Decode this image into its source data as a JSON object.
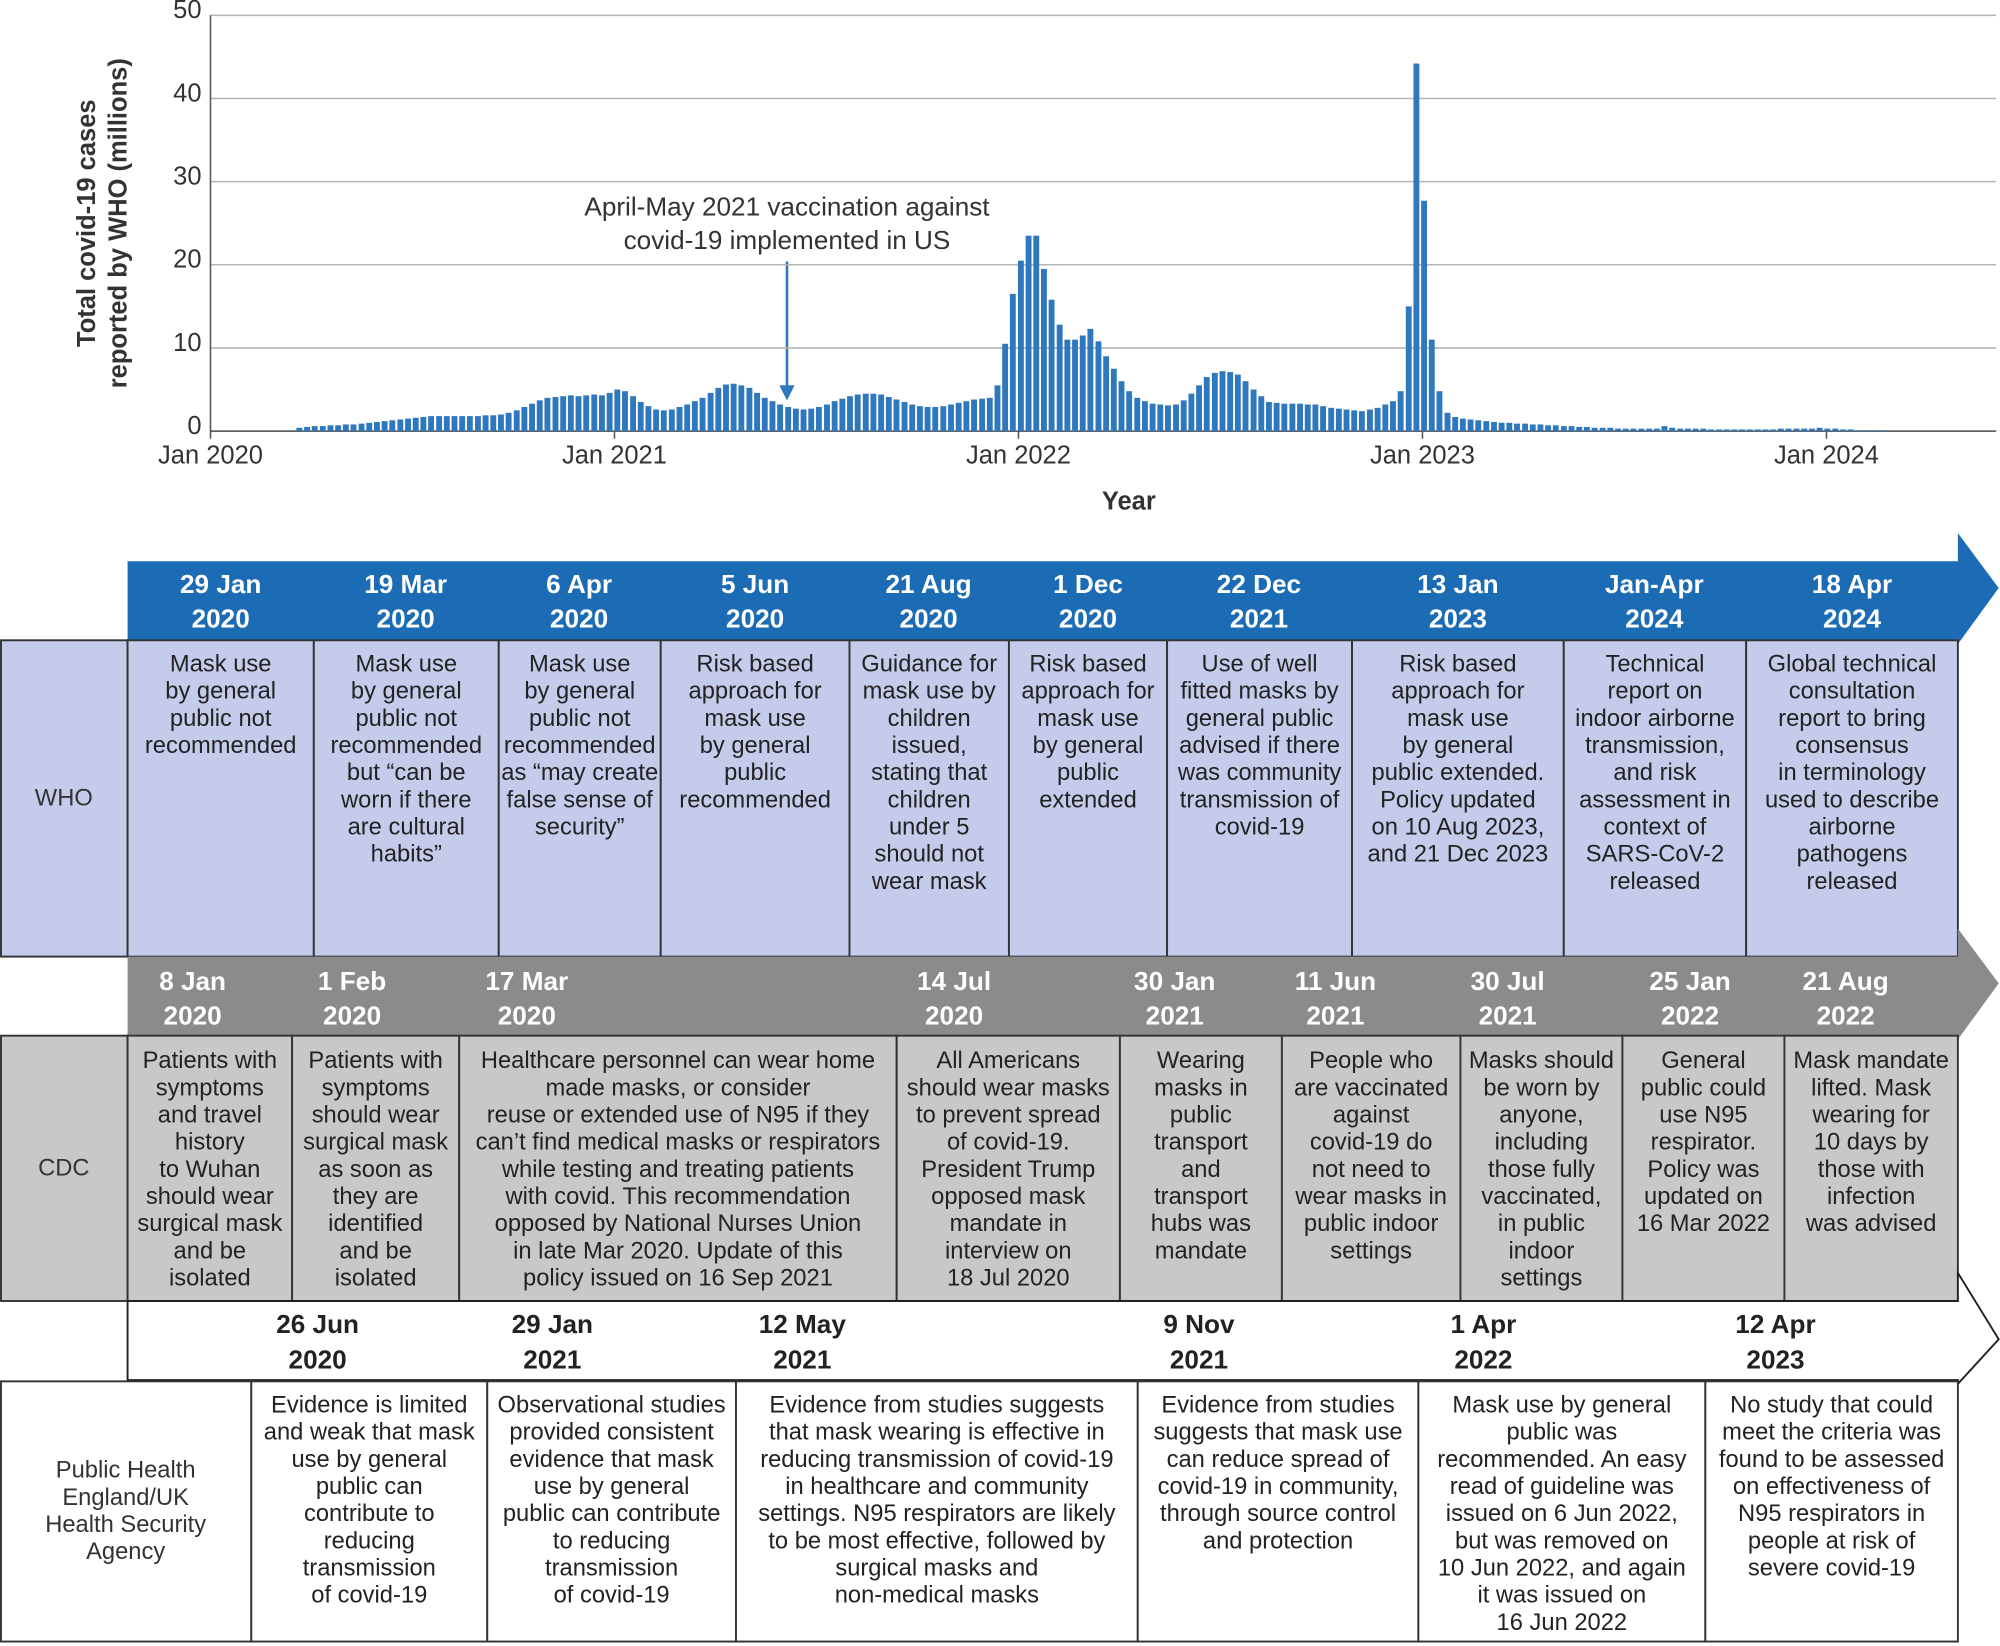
{
  "chart_data": {
    "type": "bar",
    "ylabel": [
      "Total covid-19 cases",
      "reported by WHO (millions)"
    ],
    "xlabel": "Year",
    "annotation": [
      "April-May 2021 vaccination against",
      "covid-19 implemented in US"
    ],
    "color": "#2f78bd",
    "grid": true,
    "xlim": [
      2020,
      2024.42
    ],
    "xticks": [
      {
        "value": 2020,
        "label": "Jan 2020"
      },
      {
        "value": 2021,
        "label": "Jan 2021"
      },
      {
        "value": 2022,
        "label": "Jan 2022"
      },
      {
        "value": 2023,
        "label": "Jan 2023"
      },
      {
        "value": 2024,
        "label": "Jan 2024"
      }
    ],
    "ylim": [
      0,
      50
    ],
    "yticks": [
      0,
      10,
      20,
      30,
      40,
      50
    ],
    "x": [
      2020.22,
      2020.239,
      2020.258,
      2020.278,
      2020.297,
      2020.316,
      2020.335,
      2020.354,
      2020.374,
      2020.393,
      2020.412,
      2020.431,
      2020.45,
      2020.47,
      2020.489,
      2020.508,
      2020.527,
      2020.546,
      2020.566,
      2020.585,
      2020.604,
      2020.623,
      2020.642,
      2020.662,
      2020.681,
      2020.7,
      2020.719,
      2020.738,
      2020.758,
      2020.777,
      2020.796,
      2020.815,
      2020.834,
      2020.854,
      2020.873,
      2020.892,
      2020.911,
      2020.93,
      2020.95,
      2020.969,
      2020.988,
      2021.007,
      2021.026,
      2021.046,
      2021.065,
      2021.084,
      2021.103,
      2021.122,
      2021.142,
      2021.161,
      2021.18,
      2021.199,
      2021.218,
      2021.238,
      2021.257,
      2021.276,
      2021.295,
      2021.314,
      2021.334,
      2021.353,
      2021.372,
      2021.391,
      2021.41,
      2021.43,
      2021.449,
      2021.468,
      2021.487,
      2021.506,
      2021.526,
      2021.545,
      2021.564,
      2021.583,
      2021.602,
      2021.622,
      2021.641,
      2021.66,
      2021.679,
      2021.698,
      2021.718,
      2021.737,
      2021.756,
      2021.775,
      2021.794,
      2021.814,
      2021.833,
      2021.852,
      2021.871,
      2021.89,
      2021.91,
      2021.929,
      2021.948,
      2021.967,
      2021.986,
      2022.006,
      2022.025,
      2022.044,
      2022.063,
      2022.082,
      2022.102,
      2022.121,
      2022.14,
      2022.159,
      2022.178,
      2022.198,
      2022.217,
      2022.236,
      2022.255,
      2022.274,
      2022.294,
      2022.313,
      2022.332,
      2022.351,
      2022.37,
      2022.39,
      2022.409,
      2022.428,
      2022.447,
      2022.466,
      2022.486,
      2022.505,
      2022.524,
      2022.543,
      2022.562,
      2022.582,
      2022.601,
      2022.62,
      2022.639,
      2022.658,
      2022.678,
      2022.697,
      2022.716,
      2022.735,
      2022.754,
      2022.774,
      2022.793,
      2022.812,
      2022.831,
      2022.85,
      2022.87,
      2022.889,
      2022.908,
      2022.927,
      2022.946,
      2022.966,
      2022.985,
      2023.004,
      2023.023,
      2023.042,
      2023.062,
      2023.081,
      2023.1,
      2023.119,
      2023.138,
      2023.158,
      2023.177,
      2023.196,
      2023.215,
      2023.234,
      2023.254,
      2023.273,
      2023.292,
      2023.311,
      2023.33,
      2023.35,
      2023.369,
      2023.388,
      2023.407,
      2023.426,
      2023.446,
      2023.465,
      2023.484,
      2023.503,
      2023.522,
      2023.542,
      2023.561,
      2023.58,
      2023.599,
      2023.618,
      2023.638,
      2023.657,
      2023.676,
      2023.695,
      2023.714,
      2023.734,
      2023.753,
      2023.772,
      2023.791,
      2023.81,
      2023.83,
      2023.849,
      2023.868,
      2023.887,
      2023.906,
      2023.926,
      2023.945,
      2023.964,
      2023.983,
      2024.002,
      2024.022,
      2024.041,
      2024.06,
      2024.079,
      2024.098,
      2024.118,
      2024.137
    ],
    "values": [
      0.4,
      0.5,
      0.6,
      0.6,
      0.7,
      0.7,
      0.8,
      0.8,
      0.9,
      1.0,
      1.1,
      1.2,
      1.3,
      1.4,
      1.5,
      1.6,
      1.7,
      1.8,
      1.8,
      1.8,
      1.8,
      1.8,
      1.8,
      1.8,
      1.9,
      1.9,
      2.0,
      2.2,
      2.5,
      2.9,
      3.3,
      3.7,
      4.0,
      4.1,
      4.2,
      4.3,
      4.2,
      4.3,
      4.4,
      4.3,
      4.6,
      5.0,
      4.8,
      4.2,
      3.5,
      3.0,
      2.6,
      2.5,
      2.6,
      2.9,
      3.2,
      3.6,
      4.0,
      4.6,
      5.2,
      5.6,
      5.7,
      5.5,
      5.2,
      4.6,
      4.0,
      3.6,
      3.2,
      2.9,
      2.7,
      2.6,
      2.7,
      2.9,
      3.2,
      3.6,
      3.9,
      4.2,
      4.4,
      4.5,
      4.5,
      4.4,
      4.1,
      3.8,
      3.5,
      3.2,
      3.0,
      2.9,
      2.9,
      3.0,
      3.2,
      3.4,
      3.6,
      3.8,
      3.9,
      4.0,
      5.5,
      10.5,
      16.5,
      20.5,
      23.5,
      23.5,
      19.5,
      15.8,
      12.8,
      11,
      11,
      11.5,
      12.3,
      10.8,
      9,
      7.5,
      6,
      4.8,
      4.0,
      3.6,
      3.3,
      3.2,
      3.1,
      3.2,
      3.7,
      4.5,
      5.5,
      6.5,
      7.0,
      7.2,
      7.1,
      6.8,
      6.0,
      5.0,
      4.2,
      3.5,
      3.4,
      3.3,
      3.3,
      3.3,
      3.2,
      3.2,
      3.0,
      2.8,
      2.7,
      2.6,
      2.5,
      2.4,
      2.6,
      2.8,
      3.2,
      3.6,
      4.8,
      15,
      44.2,
      27.7,
      11,
      4.8,
      2.2,
      1.7,
      1.5,
      1.4,
      1.3,
      1.2,
      1.1,
      1.0,
      1.0,
      0.9,
      0.9,
      0.8,
      0.8,
      0.7,
      0.7,
      0.6,
      0.6,
      0.5,
      0.5,
      0.4,
      0.4,
      0.4,
      0.3,
      0.3,
      0.3,
      0.3,
      0.3,
      0.3,
      0.6,
      0.4,
      0.3,
      0.3,
      0.3,
      0.3,
      0.2,
      0.2,
      0.2,
      0.2,
      0.2,
      0.2,
      0.2,
      0.2,
      0.2,
      0.3,
      0.3,
      0.3,
      0.3,
      0.3,
      0.4,
      0.3,
      0.3,
      0.2,
      0.2,
      0.1,
      0.1,
      0.1,
      0.1
    ]
  },
  "timeline": {
    "rows": [
      {
        "label": [
          "WHO"
        ],
        "header_color": "#1b6cb4",
        "header_text_color": "#ffffff",
        "body_color": "#c5cceb",
        "events": [
          {
            "date": [
              "29 Jan",
              "2020"
            ],
            "text": [
              "Mask use",
              "by general",
              "public not",
              "recommended"
            ]
          },
          {
            "date": [
              "19 Mar",
              "2020"
            ],
            "text": [
              "Mask use",
              "by general",
              "public not",
              "recommended",
              "but “can be",
              "worn if there",
              "are cultural",
              "habits”"
            ]
          },
          {
            "date": [
              "6 Apr",
              "2020"
            ],
            "text": [
              "Mask use",
              "by general",
              "public not",
              "recommended",
              "as “may create",
              "false sense of",
              "security”"
            ]
          },
          {
            "date": [
              "5 Jun",
              "2020"
            ],
            "text": [
              "Risk based",
              "approach for",
              "mask use",
              "by general",
              "public",
              "recommended"
            ]
          },
          {
            "date": [
              "21 Aug",
              "2020"
            ],
            "text": [
              "Guidance for",
              "mask use by",
              "children",
              "issued,",
              "stating that",
              "children",
              "under 5",
              "should not",
              "wear mask"
            ]
          },
          {
            "date": [
              "1 Dec",
              "2020"
            ],
            "text": [
              "Risk based",
              "approach for",
              "mask use",
              "by general",
              "public",
              "extended"
            ]
          },
          {
            "date": [
              "22 Dec",
              "2021"
            ],
            "text": [
              "Use of well",
              "fitted masks by",
              "general public",
              "advised if there",
              "was community",
              "transmission of",
              "covid-19"
            ]
          },
          {
            "date": [
              "13 Jan",
              "2023"
            ],
            "text": [
              "Risk based",
              "approach for",
              "mask use",
              "by general",
              "public extended.",
              "Policy updated",
              "on 10 Aug 2023,",
              "and 21 Dec 2023"
            ]
          },
          {
            "date": [
              "Jan-Apr",
              "2024"
            ],
            "text": [
              "Technical",
              "report on",
              "indoor airborne",
              "transmission,",
              "and risk",
              "assessment in",
              "context of",
              "SARS-CoV-2",
              "released"
            ]
          },
          {
            "date": [
              "18 Apr",
              "2024"
            ],
            "text": [
              "Global technical",
              "consultation",
              "report to bring",
              "consensus",
              "in terminology",
              "used to describe",
              "airborne",
              "pathogens",
              "released"
            ]
          }
        ]
      },
      {
        "label": [
          "CDC"
        ],
        "header_color": "#8b8b8b",
        "header_text_color": "#ffffff",
        "body_color": "#c8c8c8",
        "events": [
          {
            "date": [
              "8 Jan",
              "2020"
            ],
            "text": [
              "Patients with",
              "symptoms",
              "and travel",
              "history",
              "to Wuhan",
              "should wear",
              "surgical mask",
              "and be",
              "isolated"
            ]
          },
          {
            "date": [
              "1 Feb",
              "2020"
            ],
            "text": [
              "Patients with",
              "symptoms",
              "should wear",
              "surgical mask",
              "as soon as",
              "they are",
              "identified",
              "and be",
              "isolated"
            ]
          },
          {
            "date": [
              "17 Mar",
              "2020"
            ],
            "text": [
              "Healthcare personnel can wear home",
              "made masks, or consider",
              "reuse or extended use of N95 if they",
              "can’t find medical masks or respirators",
              "while testing and treating patients",
              "with covid. This recommendation",
              "opposed by National Nurses Union",
              "in late Mar 2020. Update of this",
              "policy issued on 16 Sep 2021"
            ]
          },
          {
            "date": [
              "14 Jul",
              "2020"
            ],
            "text": [
              "All Americans",
              "should wear masks",
              "to prevent spread",
              "of covid-19.",
              "President Trump",
              "opposed mask",
              "mandate in",
              "interview on",
              "18 Jul 2020"
            ]
          },
          {
            "date": [
              "30 Jan",
              "2021"
            ],
            "text": [
              "Wearing",
              "masks in",
              "public",
              "transport",
              "and",
              "transport",
              "hubs was",
              "mandate"
            ]
          },
          {
            "date": [
              "11 Jun",
              "2021"
            ],
            "text": [
              "People who",
              "are vaccinated",
              "against",
              "covid-19 do",
              "not need to",
              "wear masks in",
              "public indoor",
              "settings"
            ]
          },
          {
            "date": [
              "30 Jul",
              "2021"
            ],
            "text": [
              "Masks should",
              "be worn by",
              "anyone,",
              "including",
              "those fully",
              "vaccinated,",
              "in public",
              "indoor",
              "settings"
            ]
          },
          {
            "date": [
              "25 Jan",
              "2022"
            ],
            "text": [
              "General",
              "public could",
              "use N95",
              "respirator.",
              "Policy was",
              "updated on",
              "16 Mar 2022"
            ]
          },
          {
            "date": [
              "21 Aug",
              "2022"
            ],
            "text": [
              "Mask mandate",
              "lifted. Mask",
              "wearing for",
              "10 days by",
              "those with",
              "infection",
              "was advised"
            ]
          }
        ]
      },
      {
        "label": [
          "Public Health",
          "England/UK",
          "Health Security",
          "Agency"
        ],
        "header_color": "#ffffff",
        "header_text_color": "#222222",
        "body_color": "#ffffff",
        "events": [
          {
            "date": [
              "26 Jun",
              "2020"
            ],
            "text": [
              "Evidence is limited",
              "and weak that mask",
              "use by general",
              "public can",
              "contribute to",
              "reducing",
              "transmission",
              "of covid-19"
            ]
          },
          {
            "date": [
              "29 Jan",
              "2021"
            ],
            "text": [
              "Observational studies",
              "provided consistent",
              "evidence that mask",
              "use by general",
              "public can contribute",
              "to reducing",
              "transmission",
              "of covid-19"
            ]
          },
          {
            "date": [
              "12 May",
              "2021"
            ],
            "text": [
              "Evidence from studies suggests",
              "that mask wearing is effective in",
              "reducing transmission of covid-19",
              "in healthcare and community",
              "settings. N95 respirators are likely",
              "to be most effective, followed by",
              "surgical masks and",
              "non-medical masks"
            ]
          },
          {
            "date": [
              "9 Nov",
              "2021"
            ],
            "text": [
              "Evidence from studies",
              "suggests that mask use",
              "can reduce spread of",
              "covid-19 in community,",
              "through source control",
              "and protection"
            ]
          },
          {
            "date": [
              "1 Apr",
              "2022"
            ],
            "text": [
              "Mask use by general",
              "public was",
              "recommended. An easy",
              "read of guideline was",
              "issued on 6 Jun 2022,",
              "but was removed on",
              "10 Jun 2022, and again",
              "it was issued on",
              "16 Jun 2022"
            ]
          },
          {
            "date": [
              "12 Apr",
              "2023"
            ],
            "text": [
              "No study that could",
              "meet the criteria was",
              "found to be assessed",
              "on effectiveness of",
              "N95 respirators in",
              "people at risk of",
              "severe covid-19"
            ]
          }
        ]
      }
    ]
  }
}
